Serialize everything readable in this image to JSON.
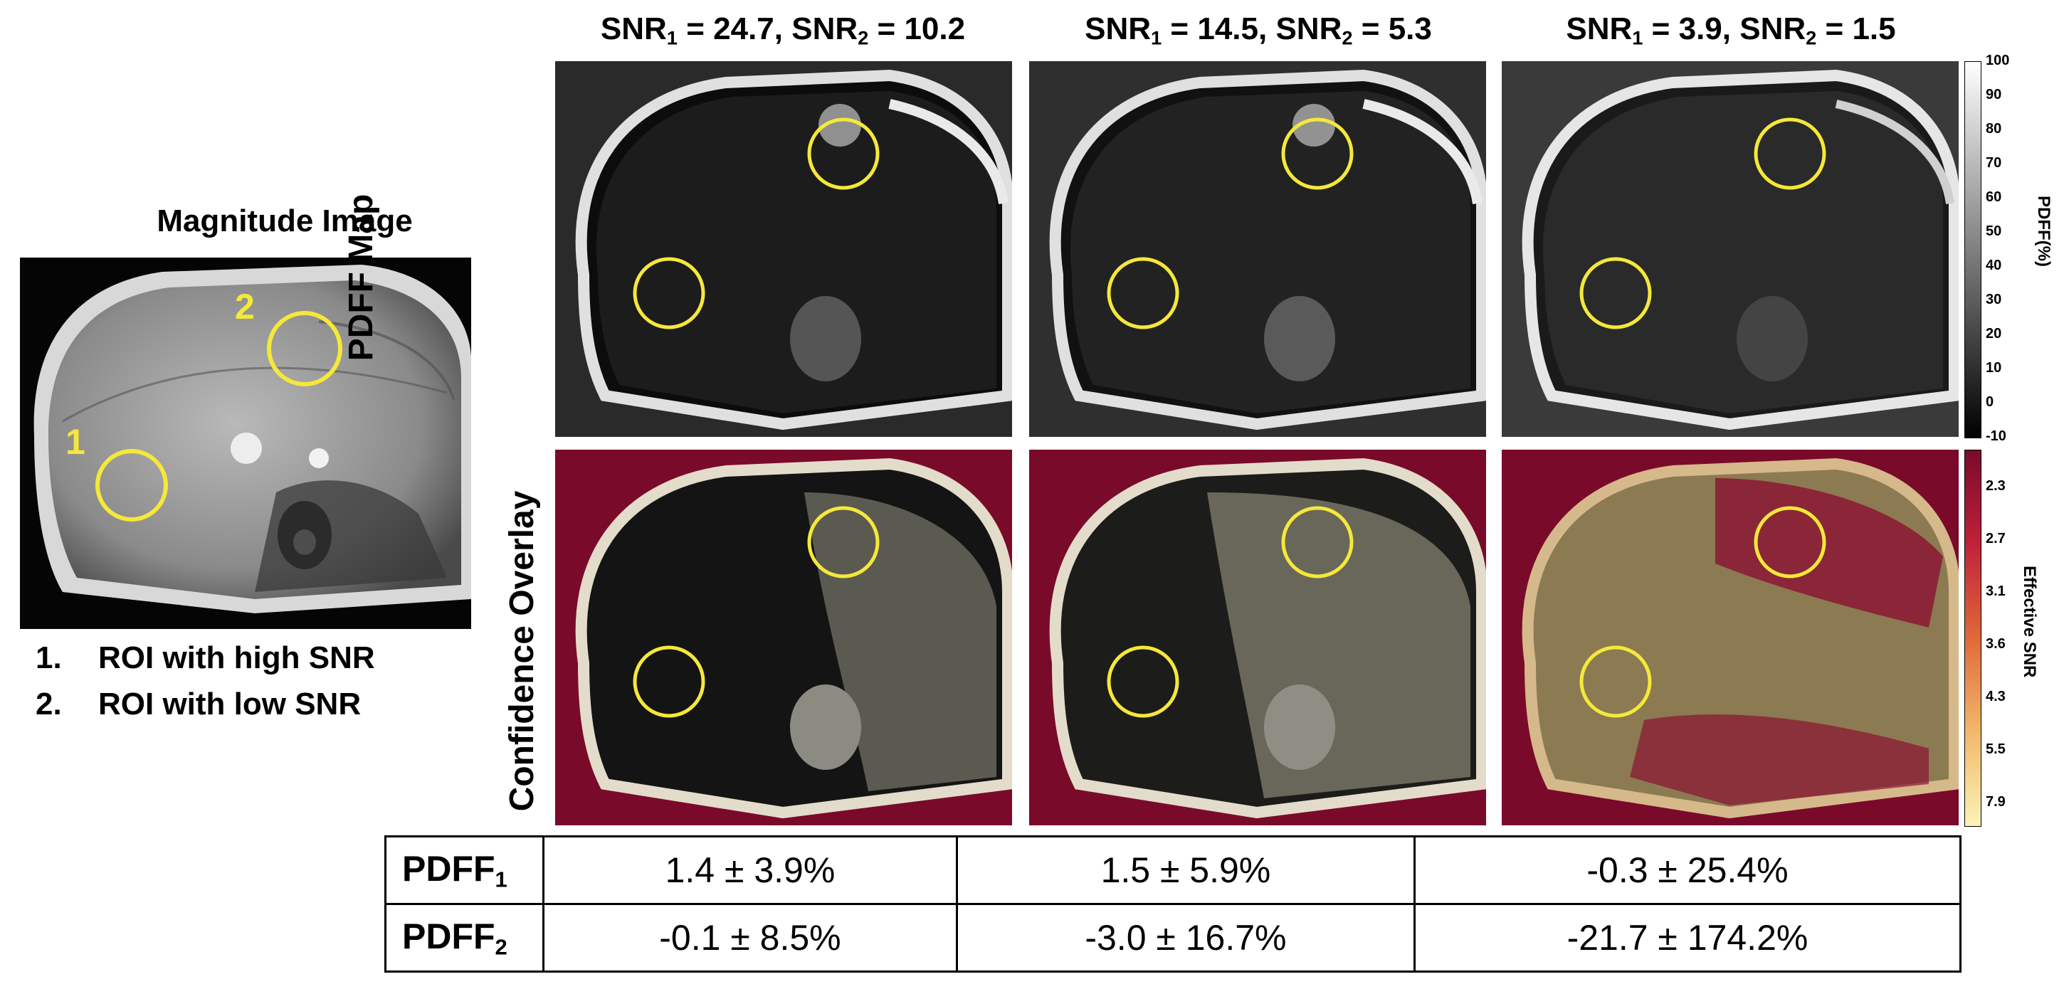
{
  "magnitude": {
    "title": "Magnitude Image",
    "roi_labels": [
      "1",
      "2"
    ],
    "legend": [
      {
        "num": "1.",
        "text": "ROI with high SNR"
      },
      {
        "num": "2.",
        "text": "ROI with low SNR"
      }
    ]
  },
  "columns": [
    {
      "snr1": "24.7",
      "snr2": "10.2"
    },
    {
      "snr1": "14.5",
      "snr2": "5.3"
    },
    {
      "snr1": "3.9",
      "snr2": "1.5"
    }
  ],
  "snr_label": "SNR",
  "rows": [
    {
      "label": "PDFF Map"
    },
    {
      "label": "Confidence  Overlay"
    }
  ],
  "colorbar_pdff": {
    "title": "PDFF(%)",
    "ticks": [
      "100",
      "90",
      "80",
      "70",
      "60",
      "50",
      "40",
      "30",
      "20",
      "10",
      "0",
      "-10"
    ]
  },
  "colorbar_snr": {
    "title": "Effective SNR",
    "ticks": [
      "2.3",
      "2.7",
      "3.1",
      "3.6",
      "4.3",
      "5.5",
      "7.9"
    ]
  },
  "table": {
    "row_labels": [
      "PDFF",
      "PDFF"
    ],
    "row_subs": [
      "1",
      "2"
    ],
    "rows": [
      [
        "1.4 ± 3.9%",
        "1.5 ± 5.9%",
        "-0.3 ± 25.4%"
      ],
      [
        "-0.1 ± 8.5%",
        "-3.0 ± 16.7%",
        "-21.7 ± 174.2%"
      ]
    ]
  },
  "colors": {
    "roi": "#f5e83a",
    "snr_low": "#7a0a2a",
    "snr_high": "#fbf3b8"
  }
}
